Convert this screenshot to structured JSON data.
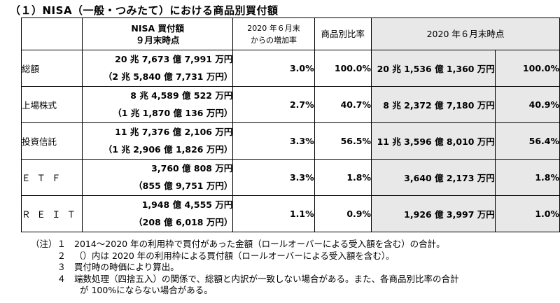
{
  "title": "（１）NISA（一般・つみたて）における商品別買付額",
  "table": {
    "headers": {
      "amount": [
        "NISA 買付額",
        "９月末時点"
      ],
      "growth": [
        "2020 年６月末",
        "からの増加率"
      ],
      "ratio": "商品別比率",
      "june": "2020 年６月末時点"
    },
    "rows": [
      {
        "category": "総額",
        "amount": "20 兆 7,673 億 7,991 万円",
        "sub": "（2 兆 5,840 億 7,731 万円）",
        "growth": "3.0%",
        "ratio": "100.0%",
        "june_amount": "20 兆 1,536 億 1,360 万円",
        "june_ratio": "100.0%"
      },
      {
        "category": "上場株式",
        "amount": "8 兆 4,589 億 522 万円",
        "sub": "（1 兆 1,870 億 136 万円）",
        "growth": "2.7%",
        "ratio": "40.7%",
        "june_amount": "8 兆 2,372 億 7,180 万円",
        "june_ratio": "40.9%"
      },
      {
        "category": "投資信託",
        "amount": "11 兆 7,376 億 2,106 万円",
        "sub": "（1 兆 2,906 億 1,826 万円）",
        "growth": "3.3%",
        "ratio": "56.5%",
        "june_amount": "11 兆 3,596 億 8,010 万円",
        "june_ratio": "56.4%"
      },
      {
        "category": "ＥＴＦ",
        "amount": "3,760 億 808 万円",
        "sub": "（855 億 9,751 万円）",
        "growth": "3.3%",
        "ratio": "1.8%",
        "june_amount": "3,640 億 2,173 万円",
        "june_ratio": "1.8%"
      },
      {
        "category": "ＲＥＩＴ",
        "amount": "1,948 億 4,555 万円",
        "sub": "（208 億 6,018 万円）",
        "growth": "1.1%",
        "ratio": "0.9%",
        "june_amount": "1,926 億 3,997 万円",
        "june_ratio": "1.0%"
      }
    ]
  },
  "notes": {
    "label": "（注）１",
    "items": [
      {
        "num": "",
        "text": "2014～2020 年の利用枠で買付があった金額（ロールオーバーによる受入額を含む）の合計。"
      },
      {
        "num": "２",
        "text": "（）内は 2020 年の利用枠による買付額（ロールオーバーによる受入額を含む）。"
      },
      {
        "num": "３",
        "text": "買付時の時価により算出。"
      },
      {
        "num": "４",
        "text": "端数処理（四捨五入）の関係で、総額と内訳が一致しない場合がある。また、各商品別比率の合計"
      }
    ],
    "continuation": "が 100%にならない場合がある。"
  }
}
